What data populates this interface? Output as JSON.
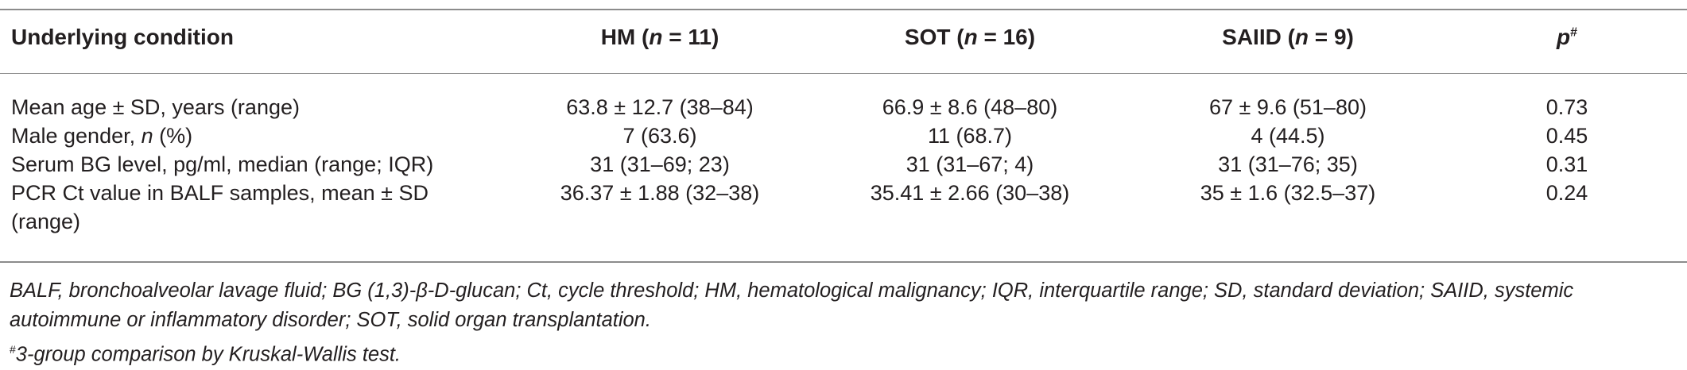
{
  "table": {
    "headers": [
      {
        "label": "Underlying condition"
      },
      {
        "label": "HM (n = 11)",
        "pre": "HM (",
        "italic": "n",
        "post": " = 11)"
      },
      {
        "label": "SOT (n = 16)",
        "pre": "SOT (",
        "italic": "n",
        "post": " = 16)"
      },
      {
        "label": "SAIID (n = 9)",
        "pre": "SAIID (",
        "italic": "n",
        "post": " = 9)"
      },
      {
        "label": "p#",
        "italic": "p",
        "sup": "#"
      }
    ],
    "rows": [
      {
        "label": "Mean age ± SD, years (range)",
        "cells": [
          "63.8 ± 12.7 (38–84)",
          "66.9 ± 8.6 (48–80)",
          "67 ± 9.6 (51–80)",
          "0.73"
        ]
      },
      {
        "label_pre": "Male gender, ",
        "label_italic": "n",
        "label_post": " (%)",
        "cells": [
          "7 (63.6)",
          "11 (68.7)",
          "4 (44.5)",
          "0.45"
        ]
      },
      {
        "label": "Serum BG level, pg/ml, median (range; IQR)",
        "cells": [
          "31 (31–69; 23)",
          "31 (31–67; 4)",
          "31 (31–76; 35)",
          "0.31"
        ]
      },
      {
        "label_line1": "PCR Ct value in BALF samples, mean ± SD",
        "label_line2": "(range)",
        "cells": [
          "36.37 ± 1.88 (32–38)",
          "35.41 ± 2.66 (30–38)",
          "35 ± 1.6 (32.5–37)",
          "0.24"
        ]
      }
    ]
  },
  "footnotes": {
    "abbrev_line1": "BALF, bronchoalveolar lavage fluid; BG (1,3)-β-D-glucan; Ct, cycle threshold; HM, hematological malignancy; IQR, interquartile range; SD, standard deviation; SAIID, systemic",
    "abbrev_line2": "autoimmune or inflammatory disorder; SOT, solid organ transplantation.",
    "test_mark": "#",
    "test_text": "3-group comparison by Kruskal-Wallis test."
  }
}
